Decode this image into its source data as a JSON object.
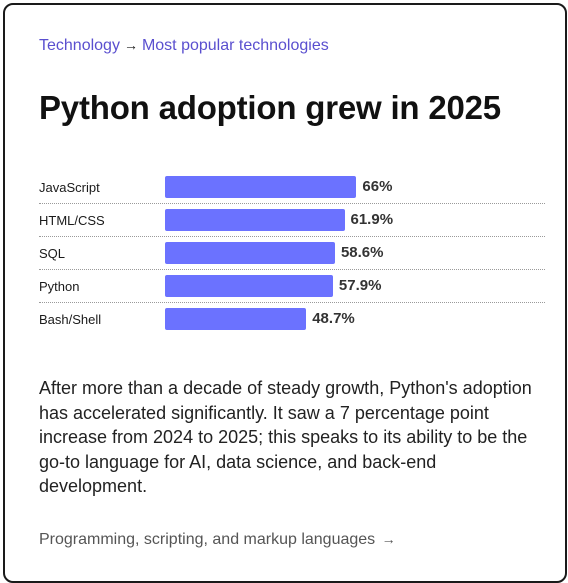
{
  "breadcrumb": {
    "parent": "Technology",
    "separator": "→",
    "current": "Most popular technologies"
  },
  "title": "Python adoption grew in 2025",
  "chart_data": {
    "type": "bar",
    "orientation": "horizontal",
    "categories": [
      "JavaScript",
      "HTML/CSS",
      "SQL",
      "Python",
      "Bash/Shell"
    ],
    "values": [
      66,
      61.9,
      58.6,
      57.9,
      48.7
    ],
    "value_labels": [
      "66%",
      "61.9%",
      "58.6%",
      "57.9%",
      "48.7%"
    ],
    "bar_color": "#6b72ff",
    "xlim": [
      0,
      100
    ],
    "grid": false
  },
  "body_text": "After more than a decade of steady growth, Python's adoption has accelerated significantly. It saw a 7 percentage point increase from 2024 to 2025; this speaks to its ability to be the go-to language for AI, data science, and back-end development.",
  "footer_link": {
    "label": "Programming, scripting, and markup languages",
    "arrow": "→"
  },
  "colors": {
    "link": "#5a4fcf",
    "bar": "#6b72ff"
  }
}
